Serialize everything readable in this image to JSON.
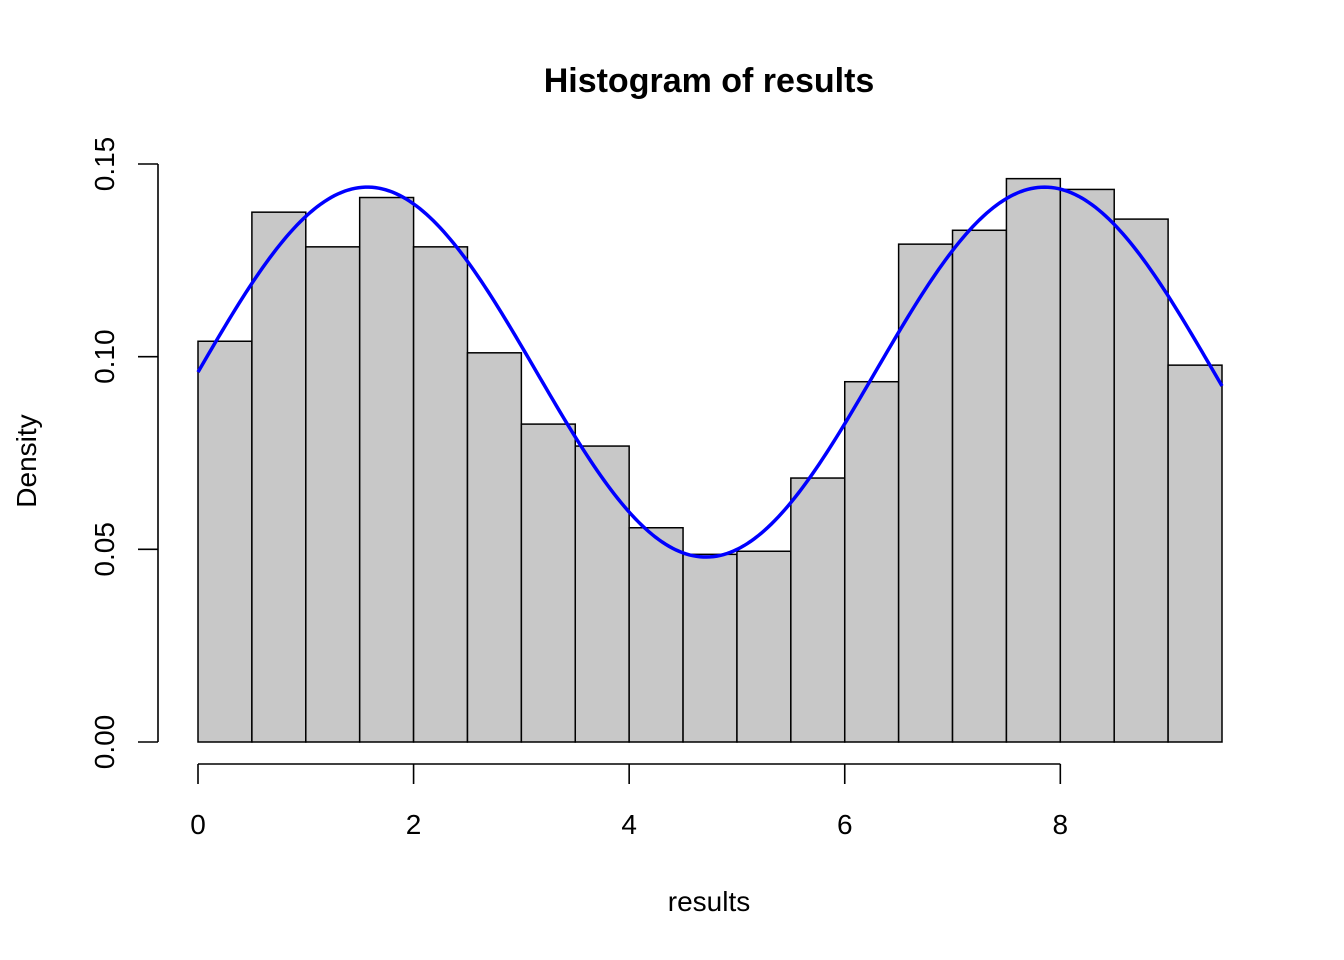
{
  "chart_data": {
    "type": "bar",
    "subtype": "histogram",
    "title": "Histogram of results",
    "xlabel": "results",
    "ylabel": "Density",
    "bin_width": 0.5,
    "bin_edges": [
      0,
      0.5,
      1,
      1.5,
      2,
      2.5,
      3,
      3.5,
      4,
      4.5,
      5,
      5.5,
      6,
      6.5,
      7,
      7.5,
      8,
      8.5,
      9,
      9.5
    ],
    "values": [
      0.104,
      0.1375,
      0.1285,
      0.1413,
      0.1285,
      0.101,
      0.0825,
      0.0768,
      0.0556,
      0.0487,
      0.0495,
      0.0685,
      0.0935,
      0.1292,
      0.1328,
      0.1462,
      0.1434,
      0.1357,
      0.0978
    ],
    "xlim": [
      0,
      9.5
    ],
    "ylim": [
      0,
      0.15
    ],
    "x_ticks": [
      0,
      2,
      4,
      6,
      8
    ],
    "x_tick_labels": [
      "0",
      "2",
      "4",
      "6",
      "8"
    ],
    "y_ticks": [
      0,
      0.05,
      0.1,
      0.15
    ],
    "y_tick_labels": [
      "0.00",
      "0.05",
      "0.10",
      "0.15"
    ],
    "bar_color": "#c8c8c8",
    "curve": {
      "color": "#0000ff",
      "formula": "0.096 + 0.048*sin(x)",
      "x_range": [
        0,
        9.5
      ]
    },
    "grid": false,
    "legend": "none"
  }
}
